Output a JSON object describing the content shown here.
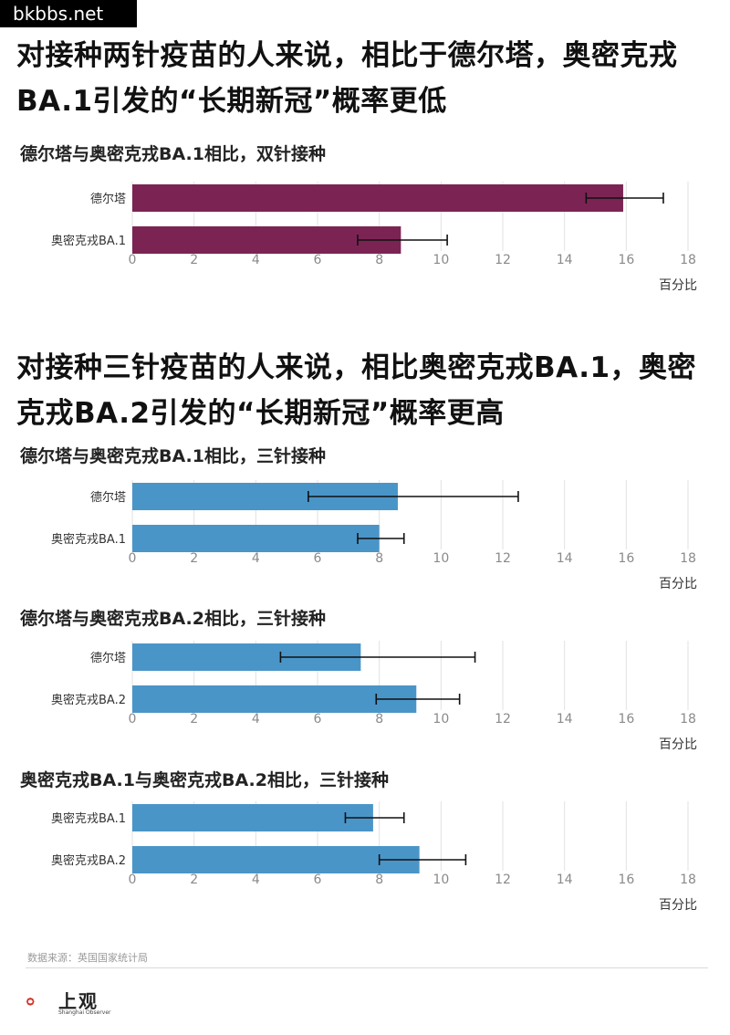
{
  "watermark": "bkbbs.net",
  "headline1": "对接种两针疫苗的人来说，相比于德尔塔，奥密克戎BA.1引发的“长期新冠”概率更低",
  "headline2": "对接种三针疫苗的人来说，相比奥密克戎BA.1，奥密克戎BA.2引发的“长期新冠”概率更高",
  "colors": {
    "purple": "#7b2454",
    "blue": "#4a95c8",
    "grid": "#e2e2e2",
    "error": "#111111"
  },
  "chart_data": [
    {
      "type": "bar",
      "orientation": "horizontal",
      "title": "德尔塔与奥密克戎BA.1相比，双针接种",
      "categories": [
        "德尔塔",
        "奥密克戎BA.1"
      ],
      "values": [
        15.9,
        8.7
      ],
      "error_low": [
        14.7,
        7.3
      ],
      "error_high": [
        17.2,
        10.2
      ],
      "xlim": [
        0,
        18
      ],
      "xticks": [
        0,
        2,
        4,
        6,
        8,
        10,
        12,
        14,
        16,
        18
      ],
      "xlabel": "百分比",
      "color": "purple"
    },
    {
      "type": "bar",
      "orientation": "horizontal",
      "title": "德尔塔与奥密克戎BA.1相比，三针接种",
      "categories": [
        "德尔塔",
        "奥密克戎BA.1"
      ],
      "values": [
        8.6,
        8.0
      ],
      "error_low": [
        5.7,
        7.3
      ],
      "error_high": [
        12.5,
        8.8
      ],
      "xlim": [
        0,
        18
      ],
      "xticks": [
        0,
        2,
        4,
        6,
        8,
        10,
        12,
        14,
        16,
        18
      ],
      "xlabel": "百分比",
      "color": "blue"
    },
    {
      "type": "bar",
      "orientation": "horizontal",
      "title": "德尔塔与奥密克戎BA.2相比，三针接种",
      "categories": [
        "德尔塔",
        "奥密克戎BA.2"
      ],
      "values": [
        7.4,
        9.2
      ],
      "error_low": [
        4.8,
        7.9
      ],
      "error_high": [
        11.1,
        10.6
      ],
      "xlim": [
        0,
        18
      ],
      "xticks": [
        0,
        2,
        4,
        6,
        8,
        10,
        12,
        14,
        16,
        18
      ],
      "xlabel": "百分比",
      "color": "blue"
    },
    {
      "type": "bar",
      "orientation": "horizontal",
      "title": "奥密克戎BA.1与奥密克戎BA.2相比，三针接种",
      "categories": [
        "奥密克戎BA.1",
        "奥密克戎BA.2"
      ],
      "values": [
        7.8,
        9.3
      ],
      "error_low": [
        6.9,
        8.0
      ],
      "error_high": [
        8.8,
        10.8
      ],
      "xlim": [
        0,
        18
      ],
      "xticks": [
        0,
        2,
        4,
        6,
        8,
        10,
        12,
        14,
        16,
        18
      ],
      "xlabel": "百分比",
      "color": "blue"
    }
  ],
  "source": "数据来源：英国国家统计局",
  "logo": {
    "name": "上观",
    "subtitle": "Shanghai Observer"
  }
}
